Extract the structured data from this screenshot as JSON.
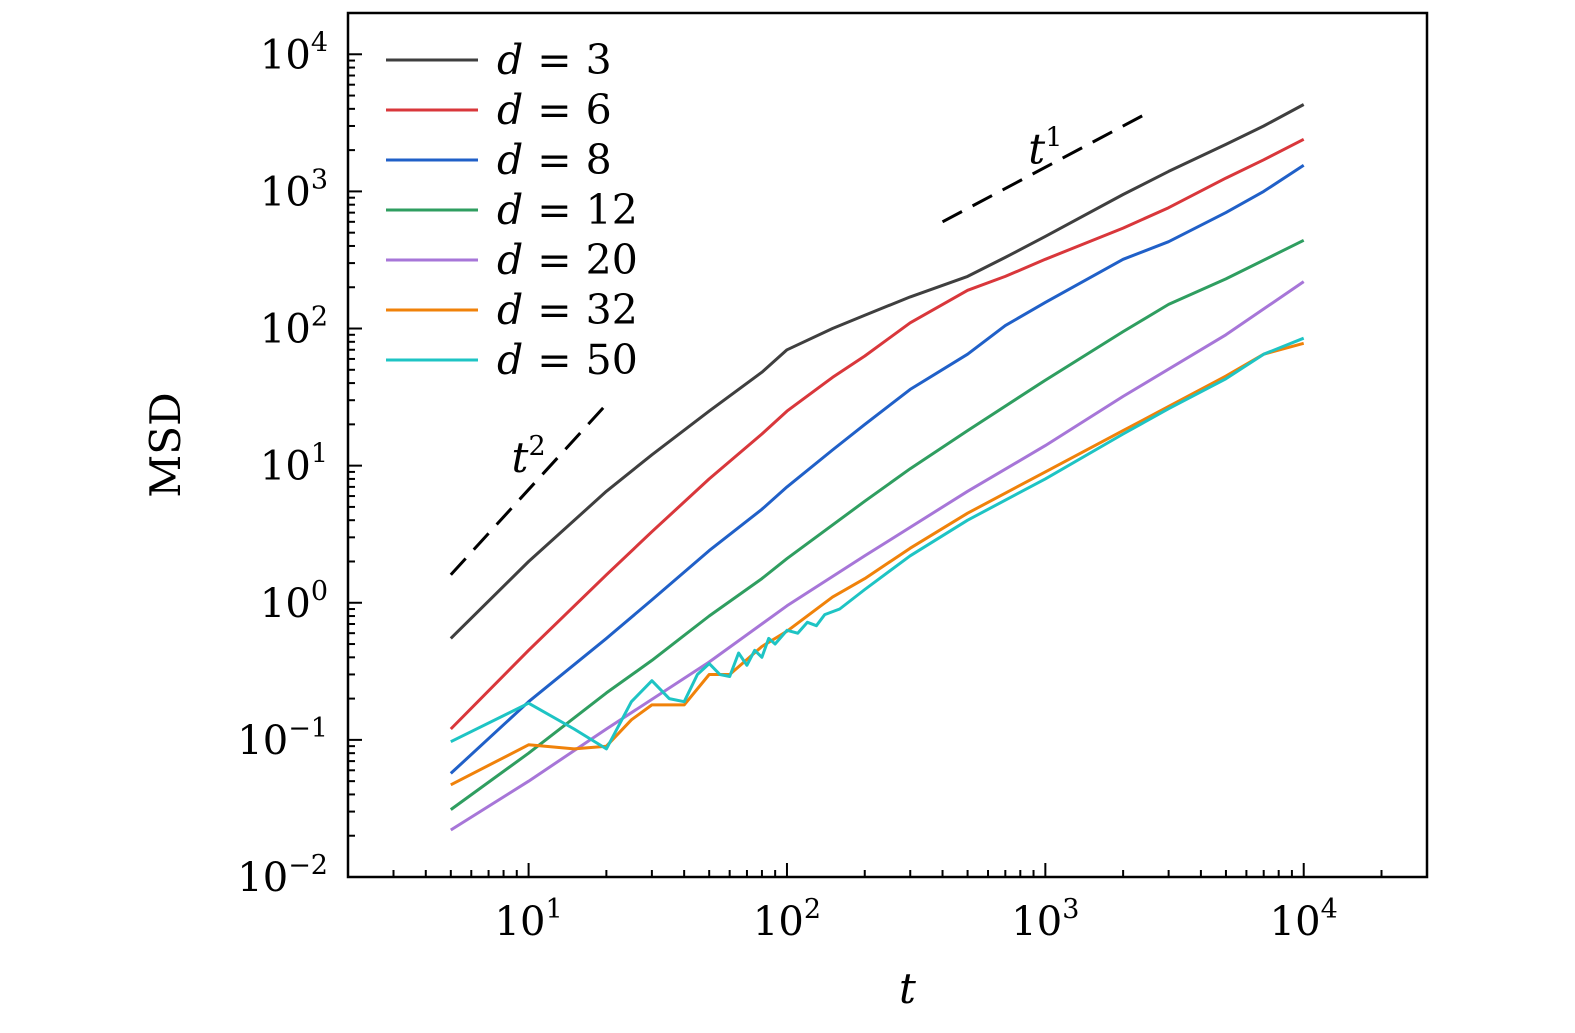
{
  "chart_data": {
    "type": "line",
    "xscale": "log",
    "yscale": "log",
    "xlabel": "t",
    "ylabel": "MSD",
    "xlim": [
      2,
      30000
    ],
    "ylim": [
      0.01,
      20000
    ],
    "xticks": [
      {
        "value": 10,
        "base": "10",
        "exp": "1"
      },
      {
        "value": 100,
        "base": "10",
        "exp": "2"
      },
      {
        "value": 1000,
        "base": "10",
        "exp": "3"
      },
      {
        "value": 10000,
        "base": "10",
        "exp": "4"
      }
    ],
    "yticks": [
      {
        "value": 0.01,
        "base": "10",
        "exp": "−2"
      },
      {
        "value": 0.1,
        "base": "10",
        "exp": "−1"
      },
      {
        "value": 1,
        "base": "10",
        "exp": "0"
      },
      {
        "value": 10,
        "base": "10",
        "exp": "1"
      },
      {
        "value": 100,
        "base": "10",
        "exp": "2"
      },
      {
        "value": 1000,
        "base": "10",
        "exp": "3"
      },
      {
        "value": 10000,
        "base": "10",
        "exp": "4"
      }
    ],
    "legend": {
      "position": "top-left"
    },
    "series": [
      {
        "name": "d = 3",
        "var": "d",
        "val": "3",
        "color": "#3f3f3f",
        "points": [
          [
            5,
            0.55
          ],
          [
            10,
            2.0
          ],
          [
            20,
            6.5
          ],
          [
            30,
            12
          ],
          [
            50,
            25
          ],
          [
            80,
            48
          ],
          [
            100,
            70
          ],
          [
            150,
            100
          ],
          [
            200,
            125
          ],
          [
            300,
            170
          ],
          [
            500,
            240
          ],
          [
            700,
            330
          ],
          [
            1000,
            470
          ],
          [
            2000,
            950
          ],
          [
            3000,
            1400
          ],
          [
            5000,
            2200
          ],
          [
            7000,
            3000
          ],
          [
            10000,
            4300
          ]
        ]
      },
      {
        "name": "d = 6",
        "var": "d",
        "val": "6",
        "color": "#d9373b",
        "points": [
          [
            5,
            0.12
          ],
          [
            10,
            0.45
          ],
          [
            20,
            1.6
          ],
          [
            30,
            3.3
          ],
          [
            50,
            8
          ],
          [
            80,
            17
          ],
          [
            100,
            25
          ],
          [
            150,
            44
          ],
          [
            200,
            63
          ],
          [
            300,
            110
          ],
          [
            500,
            190
          ],
          [
            700,
            240
          ],
          [
            1000,
            320
          ],
          [
            2000,
            540
          ],
          [
            3000,
            760
          ],
          [
            5000,
            1250
          ],
          [
            7000,
            1700
          ],
          [
            10000,
            2400
          ]
        ]
      },
      {
        "name": "d = 8",
        "var": "d",
        "val": "8",
        "color": "#2060c8",
        "points": [
          [
            5,
            0.057
          ],
          [
            10,
            0.19
          ],
          [
            20,
            0.55
          ],
          [
            30,
            1.05
          ],
          [
            50,
            2.4
          ],
          [
            80,
            4.8
          ],
          [
            100,
            7
          ],
          [
            150,
            13
          ],
          [
            200,
            20
          ],
          [
            300,
            36
          ],
          [
            500,
            65
          ],
          [
            700,
            105
          ],
          [
            1000,
            155
          ],
          [
            2000,
            320
          ],
          [
            3000,
            430
          ],
          [
            5000,
            700
          ],
          [
            7000,
            1000
          ],
          [
            10000,
            1550
          ]
        ]
      },
      {
        "name": "d = 12",
        "var": "d",
        "val": "12",
        "color": "#2f9e60",
        "points": [
          [
            5,
            0.031
          ],
          [
            10,
            0.08
          ],
          [
            20,
            0.22
          ],
          [
            30,
            0.38
          ],
          [
            50,
            0.8
          ],
          [
            80,
            1.5
          ],
          [
            100,
            2.1
          ],
          [
            200,
            5.5
          ],
          [
            300,
            9.5
          ],
          [
            500,
            18
          ],
          [
            1000,
            42
          ],
          [
            2000,
            95
          ],
          [
            3000,
            150
          ],
          [
            5000,
            230
          ],
          [
            10000,
            440
          ]
        ]
      },
      {
        "name": "d = 20",
        "var": "d",
        "val": "20",
        "color": "#a776d8",
        "points": [
          [
            5,
            0.022
          ],
          [
            10,
            0.05
          ],
          [
            20,
            0.12
          ],
          [
            50,
            0.37
          ],
          [
            100,
            0.95
          ],
          [
            200,
            2.2
          ],
          [
            500,
            6.5
          ],
          [
            1000,
            14
          ],
          [
            2000,
            32
          ],
          [
            5000,
            90
          ],
          [
            10000,
            220
          ]
        ]
      },
      {
        "name": "d = 32",
        "var": "d",
        "val": "32",
        "color": "#f0820a",
        "points": [
          [
            5,
            0.047
          ],
          [
            10,
            0.092
          ],
          [
            15,
            0.086
          ],
          [
            20,
            0.09
          ],
          [
            25,
            0.14
          ],
          [
            30,
            0.18
          ],
          [
            40,
            0.18
          ],
          [
            50,
            0.3
          ],
          [
            60,
            0.3
          ],
          [
            80,
            0.48
          ],
          [
            100,
            0.62
          ],
          [
            150,
            1.1
          ],
          [
            200,
            1.5
          ],
          [
            300,
            2.5
          ],
          [
            500,
            4.5
          ],
          [
            1000,
            9
          ],
          [
            2000,
            18
          ],
          [
            3000,
            27
          ],
          [
            5000,
            45
          ],
          [
            7000,
            65
          ],
          [
            10000,
            78
          ]
        ]
      },
      {
        "name": "d = 50",
        "var": "d",
        "val": "50",
        "color": "#1ec4c4",
        "points": [
          [
            5,
            0.097
          ],
          [
            10,
            0.185
          ],
          [
            15,
            0.12
          ],
          [
            20,
            0.086
          ],
          [
            25,
            0.19
          ],
          [
            30,
            0.27
          ],
          [
            35,
            0.2
          ],
          [
            40,
            0.19
          ],
          [
            45,
            0.3
          ],
          [
            50,
            0.36
          ],
          [
            55,
            0.3
          ],
          [
            60,
            0.29
          ],
          [
            65,
            0.43
          ],
          [
            70,
            0.35
          ],
          [
            75,
            0.45
          ],
          [
            80,
            0.4
          ],
          [
            85,
            0.55
          ],
          [
            90,
            0.5
          ],
          [
            100,
            0.63
          ],
          [
            110,
            0.6
          ],
          [
            120,
            0.72
          ],
          [
            130,
            0.68
          ],
          [
            140,
            0.82
          ],
          [
            160,
            0.9
          ],
          [
            200,
            1.25
          ],
          [
            300,
            2.2
          ],
          [
            500,
            4
          ],
          [
            1000,
            8
          ],
          [
            2000,
            17
          ],
          [
            3000,
            26
          ],
          [
            5000,
            43
          ],
          [
            7000,
            65
          ],
          [
            10000,
            85
          ]
        ]
      }
    ],
    "annotations": [
      {
        "label_base": "t",
        "label_exp": "2",
        "x": 10,
        "y": 9,
        "line": [
          [
            5,
            1.6
          ],
          [
            20,
            28
          ]
        ]
      },
      {
        "label_base": "t",
        "label_exp": "1",
        "x": 1000,
        "y": 1600,
        "line": [
          [
            400,
            600
          ],
          [
            2400,
            3600
          ]
        ]
      }
    ]
  }
}
